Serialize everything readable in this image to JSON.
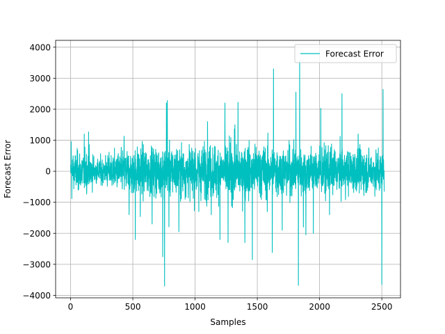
{
  "chart_data": {
    "type": "line",
    "xlabel": "Samples",
    "ylabel": "Forecast Error",
    "xlim": [
      -120,
      2650
    ],
    "ylim": [
      -4080,
      4220
    ],
    "xticks": [
      0,
      500,
      1000,
      1500,
      2000,
      2500
    ],
    "yticks": [
      -4000,
      -3000,
      -2000,
      -1000,
      0,
      1000,
      2000,
      3000,
      4000
    ],
    "xtick_labels": [
      "0",
      "500",
      "1000",
      "1500",
      "2000",
      "2500"
    ],
    "ytick_labels": [
      "−4000",
      "−3000",
      "−2000",
      "−1000",
      "0",
      "1000",
      "2000",
      "3000",
      "4000"
    ],
    "grid": true,
    "legend_position": "upper right",
    "series": [
      {
        "name": "Forecast Error",
        "color": "#00bfbf",
        "n_samples": 2520,
        "noise_scale": [
          [
            0,
            250
          ],
          [
            20,
            450
          ],
          [
            60,
            500
          ],
          [
            150,
            500
          ],
          [
            220,
            300
          ],
          [
            300,
            420
          ],
          [
            500,
            600
          ],
          [
            700,
            620
          ],
          [
            1000,
            650
          ],
          [
            1300,
            700
          ],
          [
            1600,
            650
          ],
          [
            1900,
            600
          ],
          [
            2200,
            560
          ],
          [
            2520,
            520
          ]
        ],
        "spikes": [
          [
            5,
            960
          ],
          [
            10,
            -880
          ],
          [
            20,
            500
          ],
          [
            110,
            1200
          ],
          [
            145,
            1270
          ],
          [
            430,
            1130
          ],
          [
            470,
            -1400
          ],
          [
            520,
            -2200
          ],
          [
            560,
            -1460
          ],
          [
            655,
            -1700
          ],
          [
            740,
            -2750
          ],
          [
            755,
            -3700
          ],
          [
            770,
            2200
          ],
          [
            777,
            2280
          ],
          [
            790,
            -1790
          ],
          [
            870,
            -1950
          ],
          [
            1030,
            -1300
          ],
          [
            1100,
            1600
          ],
          [
            1130,
            -1400
          ],
          [
            1200,
            -2200
          ],
          [
            1240,
            2200
          ],
          [
            1265,
            -2300
          ],
          [
            1320,
            1500
          ],
          [
            1345,
            2220
          ],
          [
            1400,
            -2300
          ],
          [
            1460,
            -2850
          ],
          [
            1580,
            -1300
          ],
          [
            1620,
            -2620
          ],
          [
            1630,
            3300
          ],
          [
            1700,
            -1900
          ],
          [
            1810,
            2550
          ],
          [
            1830,
            -3680
          ],
          [
            1840,
            3560
          ],
          [
            1870,
            -1800
          ],
          [
            1890,
            -2050
          ],
          [
            1950,
            -2000
          ],
          [
            2010,
            2030
          ],
          [
            2080,
            -1400
          ],
          [
            2180,
            2500
          ],
          [
            2310,
            1200
          ],
          [
            2500,
            -3650
          ],
          [
            2510,
            2640
          ],
          [
            2530,
            -1370
          ]
        ]
      }
    ]
  }
}
